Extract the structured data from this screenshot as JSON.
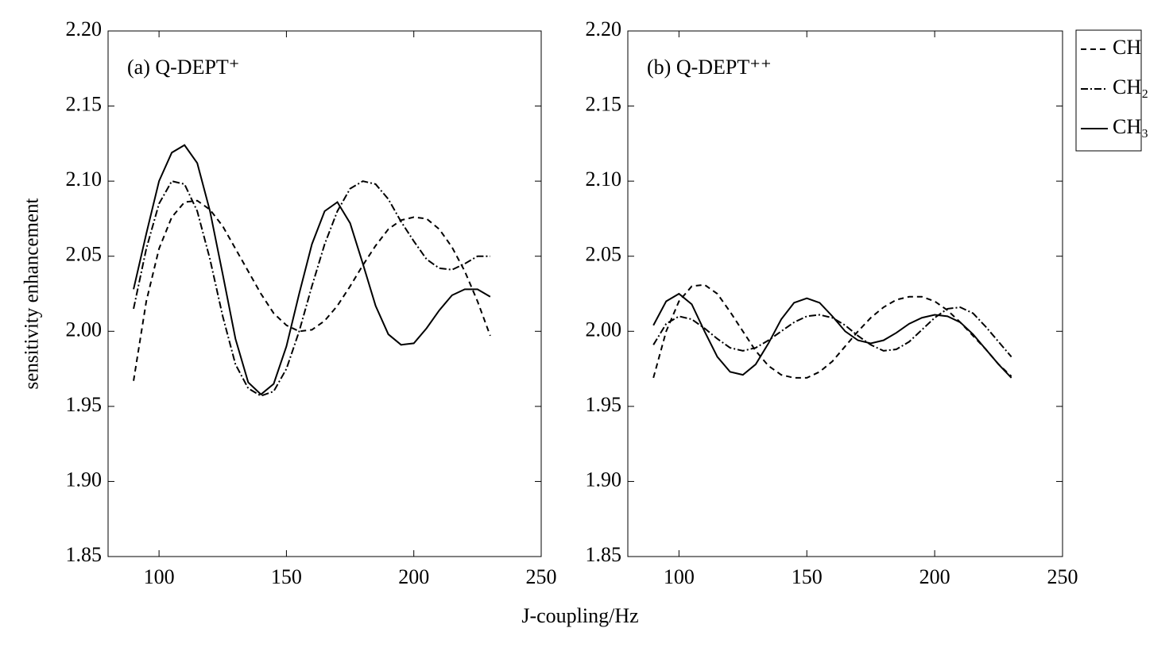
{
  "chart_data": [
    {
      "type": "line",
      "annotation": "(a) Q-DEPT⁺",
      "ylabel": "sensitivity enhancement",
      "xlabel": "J-coupling/Hz",
      "x": [
        90,
        95,
        100,
        105,
        110,
        115,
        120,
        125,
        130,
        135,
        140,
        145,
        150,
        155,
        160,
        165,
        170,
        175,
        180,
        185,
        190,
        195,
        200,
        205,
        210,
        215,
        220,
        225,
        230
      ],
      "series": [
        {
          "color": "#000000",
          "dash": "dashed",
          "values": [
            1.967,
            2.02,
            2.055,
            2.076,
            2.086,
            2.087,
            2.081,
            2.07,
            2.055,
            2.04,
            2.025,
            2.012,
            2.004,
            2.0,
            2.001,
            2.007,
            2.017,
            2.03,
            2.044,
            2.057,
            2.068,
            2.074,
            2.076,
            2.075,
            2.068,
            2.056,
            2.04,
            2.02,
            1.997
          ]
        },
        {
          "color": "#000000",
          "dash": "dashdot",
          "values": [
            2.015,
            2.055,
            2.085,
            2.1,
            2.098,
            2.08,
            2.048,
            2.01,
            1.978,
            1.962,
            1.957,
            1.96,
            1.975,
            2.0,
            2.03,
            2.058,
            2.08,
            2.095,
            2.1,
            2.098,
            2.088,
            2.073,
            2.06,
            2.048,
            2.042,
            2.041,
            2.045,
            2.05,
            2.05
          ]
        },
        {
          "color": "#000000",
          "dash": "solid",
          "values": [
            2.028,
            2.065,
            2.1,
            2.119,
            2.124,
            2.112,
            2.08,
            2.038,
            1.995,
            1.966,
            1.958,
            1.965,
            1.99,
            2.025,
            2.058,
            2.08,
            2.086,
            2.072,
            2.045,
            2.017,
            1.998,
            1.991,
            1.992,
            2.002,
            2.014,
            2.024,
            2.028,
            2.028,
            2.023
          ]
        }
      ],
      "xlim": [
        80,
        250
      ],
      "xticks": [
        100,
        150,
        200,
        250
      ],
      "ylim": [
        1.85,
        2.2
      ],
      "yticks": [
        1.85,
        {
          "value": 1.9,
          "label": "1.90"
        },
        1.95,
        {
          "value": 2.0,
          "label": "2.00"
        },
        2.05,
        {
          "value": 2.1,
          "label": "2.10"
        },
        2.15,
        {
          "value": 2.2,
          "label": "2.20"
        }
      ]
    },
    {
      "type": "line",
      "annotation": "(b) Q-DEPT⁺⁺",
      "legend": "outside-right",
      "x": [
        90,
        95,
        100,
        105,
        110,
        115,
        120,
        125,
        130,
        135,
        140,
        145,
        150,
        155,
        160,
        165,
        170,
        175,
        180,
        185,
        190,
        195,
        200,
        205,
        210,
        215,
        220,
        225,
        230
      ],
      "series": [
        {
          "name": "CH",
          "color": "#000000",
          "dash": "dashed",
          "values": [
            1.969,
            2.0,
            2.02,
            2.03,
            2.031,
            2.025,
            2.013,
            2.0,
            1.987,
            1.977,
            1.971,
            1.969,
            1.969,
            1.973,
            1.98,
            1.99,
            2.0,
            2.009,
            2.016,
            2.021,
            2.023,
            2.023,
            2.02,
            2.014,
            2.006,
            1.997,
            1.988,
            1.978,
            1.97
          ]
        },
        {
          "name": "CH₂",
          "color": "#000000",
          "dash": "dashdot",
          "values": [
            1.991,
            2.005,
            2.01,
            2.008,
            2.002,
            1.995,
            1.989,
            1.987,
            1.989,
            1.994,
            2.0,
            2.006,
            2.01,
            2.011,
            2.009,
            2.004,
            1.997,
            1.991,
            1.987,
            1.988,
            1.993,
            2.001,
            2.009,
            2.015,
            2.016,
            2.012,
            2.003,
            1.993,
            1.983
          ]
        },
        {
          "name": "CH₃",
          "color": "#000000",
          "dash": "solid",
          "values": [
            2.004,
            2.02,
            2.025,
            2.018,
            2.0,
            1.983,
            1.973,
            1.971,
            1.978,
            1.992,
            2.008,
            2.019,
            2.022,
            2.019,
            2.01,
            2.0,
            1.994,
            1.992,
            1.994,
            1.999,
            2.005,
            2.009,
            2.011,
            2.01,
            2.006,
            1.998,
            1.988,
            1.978,
            1.969
          ]
        }
      ],
      "xlim": [
        80,
        250
      ],
      "xticks": [
        100,
        150,
        200,
        250
      ],
      "ylim": [
        1.85,
        2.2
      ],
      "yticks": [
        1.85,
        {
          "value": 1.9,
          "label": "1.90"
        },
        1.95,
        {
          "value": 2.0,
          "label": "2.00"
        },
        2.05,
        {
          "value": 2.1,
          "label": "2.10"
        },
        2.15,
        {
          "value": 2.2,
          "label": "2.20"
        }
      ]
    }
  ]
}
